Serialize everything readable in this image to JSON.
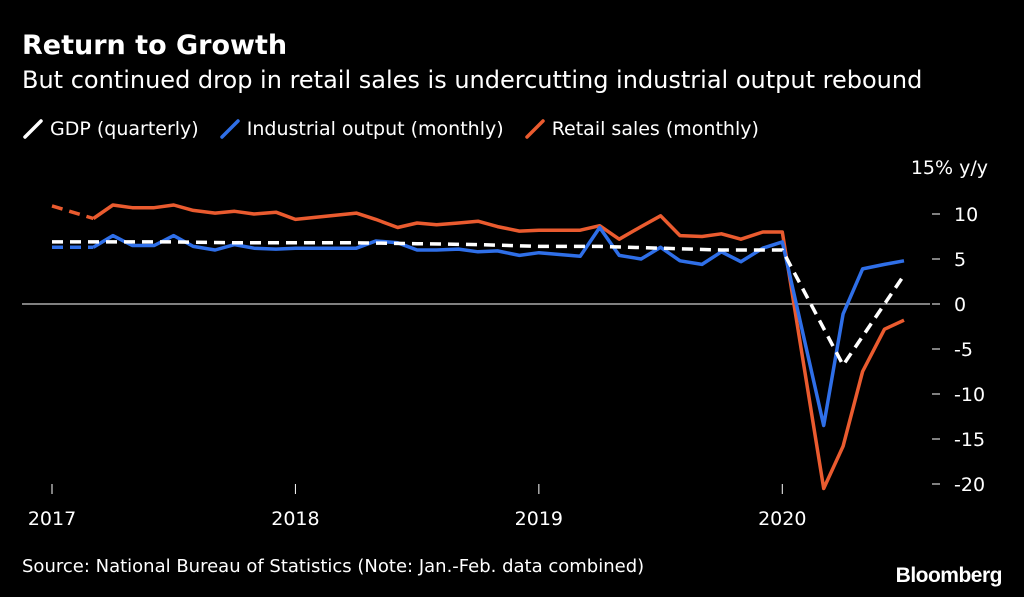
{
  "chart_data": {
    "type": "line",
    "title": "Return to Growth",
    "subtitle": "But continued drop in retail sales is undercutting industrial output rebound",
    "y_unit": "15% y/y",
    "ylim": [
      -20,
      15
    ],
    "y_ticks": [
      10,
      5,
      0,
      -5,
      -10,
      -15,
      -20
    ],
    "x_ticks": [
      {
        "label": "2017",
        "x": 2017.0
      },
      {
        "label": "2018",
        "x": 2018.0
      },
      {
        "label": "2019",
        "x": 2019.0
      },
      {
        "label": "2020",
        "x": 2020.0
      }
    ],
    "xlim": [
      2017.0,
      2020.5
    ],
    "series": [
      {
        "name": "GDP (quarterly)",
        "color": "#ffffff",
        "style": "dashed",
        "points": [
          [
            2017.0,
            6.9
          ],
          [
            2017.25,
            6.9
          ],
          [
            2017.5,
            6.9
          ],
          [
            2017.75,
            6.8
          ],
          [
            2018.0,
            6.8
          ],
          [
            2018.25,
            6.8
          ],
          [
            2018.5,
            6.7
          ],
          [
            2018.75,
            6.6
          ],
          [
            2019.0,
            6.4
          ],
          [
            2019.25,
            6.4
          ],
          [
            2019.5,
            6.2
          ],
          [
            2019.75,
            6.0
          ],
          [
            2020.0,
            6.0
          ],
          [
            2020.25,
            -6.8
          ],
          [
            2020.5,
            3.2
          ]
        ]
      },
      {
        "name": "Industrial output (monthly)",
        "color": "#2f6fe8",
        "style": "solid",
        "dash_segments": [
          [
            2017.0,
            2017.17
          ],
          [
            2017.92,
            2018.25
          ],
          [
            2018.92,
            2019.17
          ],
          [
            2019.92,
            2020.17
          ]
        ],
        "points": [
          [
            2017.0,
            6.3
          ],
          [
            2017.17,
            6.3
          ],
          [
            2017.25,
            7.6
          ],
          [
            2017.33,
            6.5
          ],
          [
            2017.42,
            6.5
          ],
          [
            2017.5,
            7.6
          ],
          [
            2017.58,
            6.4
          ],
          [
            2017.67,
            6.0
          ],
          [
            2017.75,
            6.6
          ],
          [
            2017.83,
            6.2
          ],
          [
            2017.92,
            6.1
          ],
          [
            2018.0,
            6.2
          ],
          [
            2018.25,
            6.2
          ],
          [
            2018.33,
            7.0
          ],
          [
            2018.42,
            6.8
          ],
          [
            2018.5,
            6.0
          ],
          [
            2018.58,
            6.0
          ],
          [
            2018.67,
            6.1
          ],
          [
            2018.75,
            5.8
          ],
          [
            2018.83,
            5.9
          ],
          [
            2018.92,
            5.4
          ],
          [
            2019.0,
            5.7
          ],
          [
            2019.17,
            5.3
          ],
          [
            2019.25,
            8.5
          ],
          [
            2019.33,
            5.4
          ],
          [
            2019.42,
            5.0
          ],
          [
            2019.5,
            6.3
          ],
          [
            2019.58,
            4.8
          ],
          [
            2019.67,
            4.4
          ],
          [
            2019.75,
            5.8
          ],
          [
            2019.83,
            4.7
          ],
          [
            2019.92,
            6.2
          ],
          [
            2020.0,
            6.9
          ],
          [
            2020.17,
            -13.5
          ],
          [
            2020.25,
            -1.1
          ],
          [
            2020.33,
            3.9
          ],
          [
            2020.42,
            4.4
          ],
          [
            2020.5,
            4.8
          ]
        ]
      },
      {
        "name": "Retail sales (monthly)",
        "color": "#ea5b2f",
        "style": "solid",
        "dash_segments": [
          [
            2017.0,
            2017.17
          ],
          [
            2017.92,
            2018.25
          ],
          [
            2018.92,
            2019.17
          ],
          [
            2019.92,
            2020.17
          ]
        ],
        "points": [
          [
            2017.0,
            10.9
          ],
          [
            2017.17,
            9.5
          ],
          [
            2017.25,
            11.0
          ],
          [
            2017.33,
            10.7
          ],
          [
            2017.42,
            10.7
          ],
          [
            2017.5,
            11.0
          ],
          [
            2017.58,
            10.4
          ],
          [
            2017.67,
            10.1
          ],
          [
            2017.75,
            10.3
          ],
          [
            2017.83,
            10.0
          ],
          [
            2017.92,
            10.2
          ],
          [
            2018.0,
            9.4
          ],
          [
            2018.25,
            10.1
          ],
          [
            2018.33,
            9.4
          ],
          [
            2018.42,
            8.5
          ],
          [
            2018.5,
            9.0
          ],
          [
            2018.58,
            8.8
          ],
          [
            2018.67,
            9.0
          ],
          [
            2018.75,
            9.2
          ],
          [
            2018.83,
            8.6
          ],
          [
            2018.92,
            8.1
          ],
          [
            2019.0,
            8.2
          ],
          [
            2019.17,
            8.2
          ],
          [
            2019.25,
            8.7
          ],
          [
            2019.33,
            7.2
          ],
          [
            2019.42,
            8.6
          ],
          [
            2019.5,
            9.8
          ],
          [
            2019.58,
            7.6
          ],
          [
            2019.67,
            7.5
          ],
          [
            2019.75,
            7.8
          ],
          [
            2019.83,
            7.2
          ],
          [
            2019.92,
            8.0
          ],
          [
            2020.0,
            8.0
          ],
          [
            2020.17,
            -20.5
          ],
          [
            2020.25,
            -15.8
          ],
          [
            2020.33,
            -7.5
          ],
          [
            2020.42,
            -2.8
          ],
          [
            2020.5,
            -1.8
          ]
        ]
      }
    ]
  },
  "source": "Source: National Bureau of Statistics (Note: Jan.-Feb. data combined)",
  "brand": "Bloomberg"
}
